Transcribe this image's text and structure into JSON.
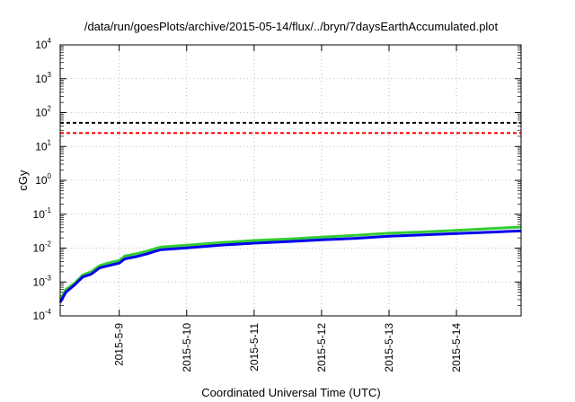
{
  "chart_data": {
    "type": "line",
    "title": "/data/run/goesPlots/archive/2015-05-14/flux/../bryn/7daysEarthAccumulated.plot",
    "xlabel": "Coordinated Universal Time (UTC)",
    "ylabel": "cGy",
    "y_scale": "log",
    "ylim": [
      0.0001,
      10000
    ],
    "y_ticks": [
      {
        "value": 0.0001,
        "base": "10",
        "exp": "-4"
      },
      {
        "value": 0.001,
        "base": "10",
        "exp": "-3"
      },
      {
        "value": 0.01,
        "base": "10",
        "exp": "-2"
      },
      {
        "value": 0.1,
        "base": "10",
        "exp": "-1"
      },
      {
        "value": 1,
        "base": "10",
        "exp": "0"
      },
      {
        "value": 10,
        "base": "10",
        "exp": "1"
      },
      {
        "value": 100,
        "base": "10",
        "exp": "2"
      },
      {
        "value": 1000,
        "base": "10",
        "exp": "3"
      },
      {
        "value": 10000,
        "base": "10",
        "exp": "4"
      }
    ],
    "x_ticks": [
      "2015-5-9",
      "2015-5-10",
      "2015-5-11",
      "2015-5-12",
      "2015-5-13",
      "2015-5-14"
    ],
    "xlim": [
      "2015-05-08 03:00",
      "2015-05-14 23:00"
    ],
    "grid": true,
    "reference_lines": [
      {
        "value": 50,
        "color": "#000000",
        "style": "dashed"
      },
      {
        "value": 25,
        "color": "#ff0000",
        "style": "dashed"
      }
    ],
    "series": [
      {
        "color": "#33cc33",
        "x": [
          "2015-05-08 03:00",
          "2015-05-08 05:00",
          "2015-05-08 08:00",
          "2015-05-08 11:00",
          "2015-05-08 14:00",
          "2015-05-08 17:00",
          "2015-05-08 20:00",
          "2015-05-09 00:00",
          "2015-05-09 02:00",
          "2015-05-09 06:00",
          "2015-05-09 10:00",
          "2015-05-09 13:00",
          "2015-05-09 15:00",
          "2015-05-10 00:00",
          "2015-05-10 12:00",
          "2015-05-11 00:00",
          "2015-05-11 12:00",
          "2015-05-12 00:00",
          "2015-05-12 12:00",
          "2015-05-13 00:00",
          "2015-05-13 12:00",
          "2015-05-14 00:00",
          "2015-05-14 12:00",
          "2015-05-14 23:00"
        ],
        "values": [
          0.0003,
          0.0006,
          0.0009,
          0.0016,
          0.002,
          0.003,
          0.0036,
          0.0043,
          0.0058,
          0.0068,
          0.0082,
          0.0098,
          0.0108,
          0.0122,
          0.0145,
          0.0168,
          0.0185,
          0.0212,
          0.0238,
          0.0275,
          0.03,
          0.0335,
          0.0375,
          0.042
        ]
      },
      {
        "color": "#0000ee",
        "x": [
          "2015-05-08 03:00",
          "2015-05-08 05:00",
          "2015-05-08 08:00",
          "2015-05-08 11:00",
          "2015-05-08 14:00",
          "2015-05-08 17:00",
          "2015-05-08 20:00",
          "2015-05-09 00:00",
          "2015-05-09 02:00",
          "2015-05-09 06:00",
          "2015-05-09 10:00",
          "2015-05-09 13:00",
          "2015-05-09 15:00",
          "2015-05-10 00:00",
          "2015-05-10 12:00",
          "2015-05-11 00:00",
          "2015-05-11 12:00",
          "2015-05-12 00:00",
          "2015-05-12 12:00",
          "2015-05-13 00:00",
          "2015-05-13 12:00",
          "2015-05-14 00:00",
          "2015-05-14 12:00",
          "2015-05-14 23:00"
        ],
        "values": [
          0.00025,
          0.0005,
          0.0008,
          0.0014,
          0.0017,
          0.0026,
          0.003,
          0.0036,
          0.0048,
          0.0056,
          0.0068,
          0.0082,
          0.009,
          0.0102,
          0.0122,
          0.014,
          0.0155,
          0.0175,
          0.0195,
          0.0225,
          0.0245,
          0.027,
          0.0295,
          0.0325
        ]
      }
    ]
  }
}
